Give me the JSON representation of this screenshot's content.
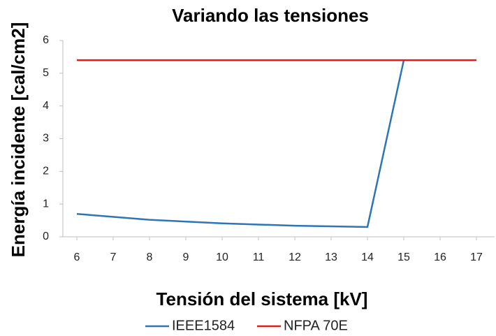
{
  "chart_data": {
    "type": "line",
    "title": "Variando las tensiones",
    "x_label": "Tensión del sistema [kV]",
    "y_label": "Energía incidente [cal/cm2]",
    "xlim": [
      5.5,
      17.5
    ],
    "xticks": [
      6,
      7,
      8,
      9,
      10,
      11,
      12,
      13,
      14,
      15,
      16,
      17
    ],
    "ylim": [
      0,
      6
    ],
    "yticks": [
      0,
      1,
      2,
      3,
      4,
      5,
      6
    ],
    "grid": false,
    "legend": "bottom",
    "series": [
      {
        "name": "IEEE1584",
        "color": "#2e75b6",
        "x": [
          6,
          8,
          10,
          12,
          14,
          15
        ],
        "values": [
          0.7,
          0.52,
          0.41,
          0.34,
          0.3,
          5.4
        ]
      },
      {
        "name": "NFPA 70E",
        "color": "#e41a1c",
        "x": [
          6,
          17
        ],
        "values": [
          5.4,
          5.4
        ]
      }
    ]
  }
}
